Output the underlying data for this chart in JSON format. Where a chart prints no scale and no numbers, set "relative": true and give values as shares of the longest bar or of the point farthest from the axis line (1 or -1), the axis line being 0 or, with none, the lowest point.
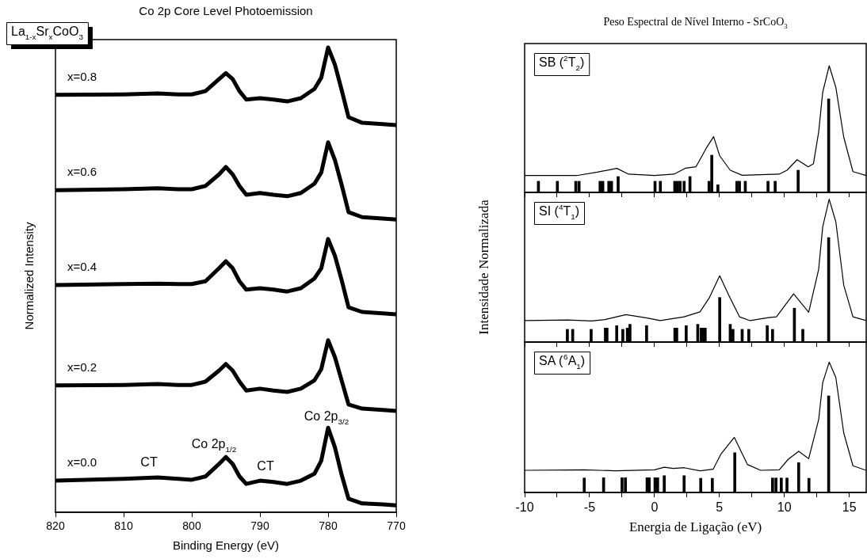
{
  "chart_data": [
    {
      "type": "line",
      "title": "Co 2p Core Level Photoemission",
      "xlabel": "Binding Energy (eV)",
      "ylabel": "Normalized Intensity",
      "relative": true,
      "x": [
        820,
        810,
        805,
        802,
        800,
        798,
        796,
        795,
        794,
        793,
        792,
        790,
        788,
        786,
        784,
        782,
        781,
        780,
        779,
        778,
        777,
        775,
        772,
        770
      ],
      "xlim": [
        820,
        770
      ],
      "xticks": [
        820,
        810,
        800,
        790,
        780,
        770
      ],
      "series": [
        {
          "name": "x=0.8",
          "color": "#000000",
          "values": [
            0.898,
            0.899,
            0.901,
            0.899,
            0.899,
            0.906,
            0.932,
            0.945,
            0.932,
            0.906,
            0.888,
            0.891,
            0.888,
            0.884,
            0.891,
            0.911,
            0.935,
            1.0,
            0.963,
            0.908,
            0.85,
            0.838,
            0.835,
            0.833
          ]
        },
        {
          "name": "x=0.6",
          "color": "#000000",
          "values": [
            0.693,
            0.695,
            0.697,
            0.695,
            0.695,
            0.702,
            0.727,
            0.743,
            0.727,
            0.702,
            0.683,
            0.687,
            0.683,
            0.68,
            0.687,
            0.707,
            0.731,
            0.796,
            0.758,
            0.704,
            0.646,
            0.635,
            0.632,
            0.63
          ]
        },
        {
          "name": "x=0.4",
          "color": "#000000",
          "values": [
            0.489,
            0.491,
            0.492,
            0.491,
            0.491,
            0.497,
            0.525,
            0.54,
            0.525,
            0.497,
            0.479,
            0.482,
            0.479,
            0.475,
            0.482,
            0.503,
            0.525,
            0.588,
            0.552,
            0.499,
            0.441,
            0.431,
            0.428,
            0.426
          ]
        },
        {
          "name": "x=0.2",
          "color": "#000000",
          "values": [
            0.273,
            0.274,
            0.276,
            0.274,
            0.274,
            0.281,
            0.305,
            0.319,
            0.305,
            0.281,
            0.262,
            0.266,
            0.262,
            0.259,
            0.266,
            0.284,
            0.308,
            0.37,
            0.334,
            0.283,
            0.232,
            0.223,
            0.22,
            0.218
          ]
        },
        {
          "name": "x=0.0",
          "color": "#000000",
          "values": [
            0.068,
            0.072,
            0.075,
            0.072,
            0.07,
            0.077,
            0.104,
            0.119,
            0.104,
            0.077,
            0.061,
            0.068,
            0.065,
            0.061,
            0.068,
            0.083,
            0.111,
            0.182,
            0.14,
            0.08,
            0.029,
            0.019,
            0.017,
            0.015
          ]
        }
      ],
      "annotations": [
        "La$_{1-x}$Sr$_{x}$CoO$_{3}$",
        "CT",
        "Co 2p$_{1/2}$",
        "CT",
        "Co 2p$_{3/2}$"
      ]
    },
    {
      "type": "line",
      "title": "Peso Espectral de Nível Interno - SrCoO$_{3}$",
      "relative": true,
      "tick_labels": false,
      "xlim": [
        -10,
        16.3
      ],
      "xticks": [
        -10,
        {
          "value": -7.5,
          "label": null
        },
        -5,
        {
          "value": -2.5,
          "label": null
        },
        0,
        {
          "value": 2.5,
          "label": null
        },
        5,
        {
          "value": 7.5,
          "label": null
        },
        10,
        {
          "value": 12.5,
          "label": null
        },
        15
      ],
      "series": [
        {
          "type": "bar",
          "color": "#000000",
          "x": [
            -8.94,
            -7.48,
            -6.06,
            -5.81,
            -4.19,
            -3.98,
            -3.52,
            -3.31,
            -2.8,
            0.04,
            0.45,
            1.56,
            1.77,
            1.97,
            2.28,
            2.73,
            4.2,
            4.41,
            4.88,
            6.34,
            6.54,
            6.99,
            8.74,
            9.29,
            11.06,
            13.41
          ],
          "values": [
            0.088,
            0.088,
            0.088,
            0.088,
            0.088,
            0.088,
            0.088,
            0.088,
            0.125,
            0.088,
            0.088,
            0.088,
            0.088,
            0.088,
            0.088,
            0.125,
            0.088,
            0.294,
            0.06,
            0.088,
            0.088,
            0.088,
            0.088,
            0.088,
            0.175,
            0.738
          ]
        },
        {
          "color": "#000000",
          "x": [
            -10,
            -6,
            -4.4,
            -2.9,
            -2,
            0,
            1.5,
            2.4,
            3.19,
            4.0,
            4.55,
            5.02,
            5.83,
            6.75,
            9.6,
            10.2,
            10.98,
            11.83,
            12.24,
            12.64,
            12.95,
            13.45,
            13.96,
            14.57,
            15.28,
            16.3
          ],
          "values": [
            0.133,
            0.133,
            0.16,
            0.19,
            0.144,
            0.133,
            0.144,
            0.192,
            0.202,
            0.352,
            0.44,
            0.289,
            0.175,
            0.135,
            0.144,
            0.175,
            0.258,
            0.202,
            0.227,
            0.477,
            0.79,
            1.0,
            0.83,
            0.436,
            0.164,
            0.133
          ]
        }
      ],
      "annotations": [
        "SB ($^{2}$T$_{2}$)"
      ]
    },
    {
      "type": "line",
      "ylabel": "Intensidade Normalizada",
      "relative": true,
      "tick_labels": false,
      "xlim": [
        -10,
        16.3
      ],
      "xticks": [
        -10,
        {
          "value": -7.5,
          "label": null
        },
        -5,
        {
          "value": -2.5,
          "label": null
        },
        0,
        {
          "value": 2.5,
          "label": null
        },
        5,
        {
          "value": 7.5,
          "label": null
        },
        10,
        {
          "value": 12.5,
          "label": null
        },
        15
      ],
      "series": [
        {
          "type": "bar",
          "color": "#000000",
          "x": [
            -6.71,
            -6.3,
            -4.88,
            -3.78,
            -3.66,
            -2.91,
            -2.44,
            -2.09,
            -1.89,
            -0.61,
            1.57,
            1.71,
            2.44,
            3.33,
            3.6,
            3.74,
            3.9,
            5.02,
            5.83,
            6.04,
            6.75,
            7.26,
            8.68,
            9.09,
            10.77,
            11.42,
            13.41
          ],
          "values": [
            0.089,
            0.089,
            0.089,
            0.098,
            0.098,
            0.115,
            0.089,
            0.098,
            0.124,
            0.115,
            0.098,
            0.098,
            0.115,
            0.124,
            0.098,
            0.098,
            0.098,
            0.312,
            0.124,
            0.089,
            0.089,
            0.089,
            0.115,
            0.089,
            0.237,
            0.089,
            0.732
          ]
        },
        {
          "color": "#000000",
          "x": [
            -10,
            -6.67,
            -4.84,
            -3.82,
            -2.2,
            -0.57,
            0.45,
            2.28,
            3.5,
            4.2,
            5.02,
            5.73,
            6.54,
            7.36,
            8.78,
            9.39,
            10.71,
            11.87,
            12.64,
            12.95,
            13.45,
            13.96,
            14.57,
            15.28,
            16.3
          ],
          "values": [
            0.15,
            0.155,
            0.148,
            0.157,
            0.192,
            0.168,
            0.15,
            0.177,
            0.211,
            0.307,
            0.464,
            0.326,
            0.177,
            0.15,
            0.171,
            0.177,
            0.338,
            0.209,
            0.51,
            0.806,
            1.0,
            0.843,
            0.399,
            0.177,
            0.15
          ]
        }
      ],
      "annotations": [
        "SI ($^{4}$T$_{1}$)"
      ]
    },
    {
      "type": "line",
      "xlabel": "Energia de Ligação (eV)",
      "relative": true,
      "xlim": [
        -10,
        16.3
      ],
      "xticks": [
        -10,
        {
          "value": -7.5,
          "label": null
        },
        -5,
        {
          "value": -2.5,
          "label": null
        },
        0,
        {
          "value": 2.5,
          "label": null
        },
        5,
        {
          "value": 7.5,
          "label": null
        },
        10,
        {
          "value": 12.5,
          "label": null
        },
        15
      ],
      "series": [
        {
          "type": "bar",
          "color": "#000000",
          "x": [
            -5.41,
            -3.92,
            -2.5,
            -2.24,
            -0.57,
            -0.41,
            0.04,
            0.24,
            0.75,
            2.28,
            3.56,
            4.45,
            6.18,
            9.09,
            9.35,
            9.76,
            10.2,
            11.1,
            11.89,
            13.41
          ],
          "values": [
            0.111,
            0.113,
            0.113,
            0.113,
            0.113,
            0.113,
            0.113,
            0.113,
            0.129,
            0.129,
            0.109,
            0.109,
            0.305,
            0.111,
            0.111,
            0.111,
            0.111,
            0.229,
            0.109,
            0.741
          ]
        },
        {
          "color": "#000000",
          "x": [
            -10,
            -5.41,
            -3.01,
            0,
            0.75,
            1.46,
            2.28,
            3.5,
            4.51,
            5.12,
            6.14,
            7.15,
            8.17,
            9.6,
            10.3,
            11.1,
            11.87,
            12.64,
            12.95,
            13.45,
            13.96,
            14.57,
            15.28,
            16.3
          ],
          "values": [
            0.17,
            0.174,
            0.166,
            0.174,
            0.194,
            0.184,
            0.19,
            0.166,
            0.178,
            0.296,
            0.423,
            0.215,
            0.17,
            0.174,
            0.255,
            0.316,
            0.259,
            0.559,
            0.842,
            1.0,
            0.882,
            0.457,
            0.205,
            0.17
          ]
        }
      ],
      "annotations": [
        "SA ($^{6}$A$_{1}$)"
      ]
    }
  ]
}
